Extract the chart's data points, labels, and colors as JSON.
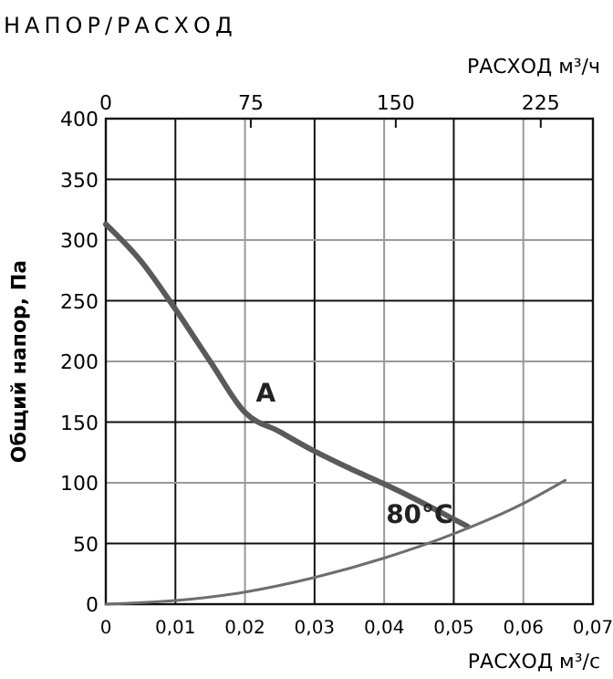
{
  "chart_data": {
    "type": "line",
    "title": "НАПОР/РАСХОД",
    "xlabel": "РАСХОД м³/с",
    "x2label": "РАСХОД м³/ч",
    "ylabel": "Общий напор, Па",
    "xlim": [
      0,
      0.07
    ],
    "xticks": [
      {
        "value": 0,
        "label": "0"
      },
      {
        "value": 0.01,
        "label": "0,01"
      },
      {
        "value": 0.02,
        "label": "0,02"
      },
      {
        "value": 0.03,
        "label": "0,03"
      },
      {
        "value": 0.04,
        "label": "0,04"
      },
      {
        "value": 0.05,
        "label": "0,05"
      },
      {
        "value": 0.06,
        "label": "0,06"
      },
      {
        "value": 0.07,
        "label": "0,07"
      }
    ],
    "x2lim": [
      0,
      252
    ],
    "x2ticks": [
      0,
      75,
      150,
      225
    ],
    "ylim": [
      0,
      400
    ],
    "yticks": [
      0,
      50,
      100,
      150,
      200,
      250,
      300,
      350,
      400
    ],
    "grid": true,
    "marker": "none",
    "series": [
      {
        "color": "#5a5a5a",
        "x": [
          0,
          0.005,
          0.01,
          0.015,
          0.02,
          0.025,
          0.03,
          0.035,
          0.04,
          0.045,
          0.05,
          0.052
        ],
        "values": [
          313,
          283,
          243,
          200,
          158,
          142,
          126,
          112,
          99,
          85,
          70,
          64
        ]
      },
      {
        "color": "#6e6e6e",
        "x": [
          0,
          0.01,
          0.02,
          0.03,
          0.04,
          0.05,
          0.06,
          0.066
        ],
        "values": [
          0,
          3,
          10,
          22,
          38,
          58,
          83,
          102
        ]
      }
    ],
    "annotations": [
      {
        "text": "A",
        "x": 0.02,
        "y": 158
      },
      {
        "text": "80°C",
        "x": 0.052,
        "y": 64
      }
    ]
  }
}
